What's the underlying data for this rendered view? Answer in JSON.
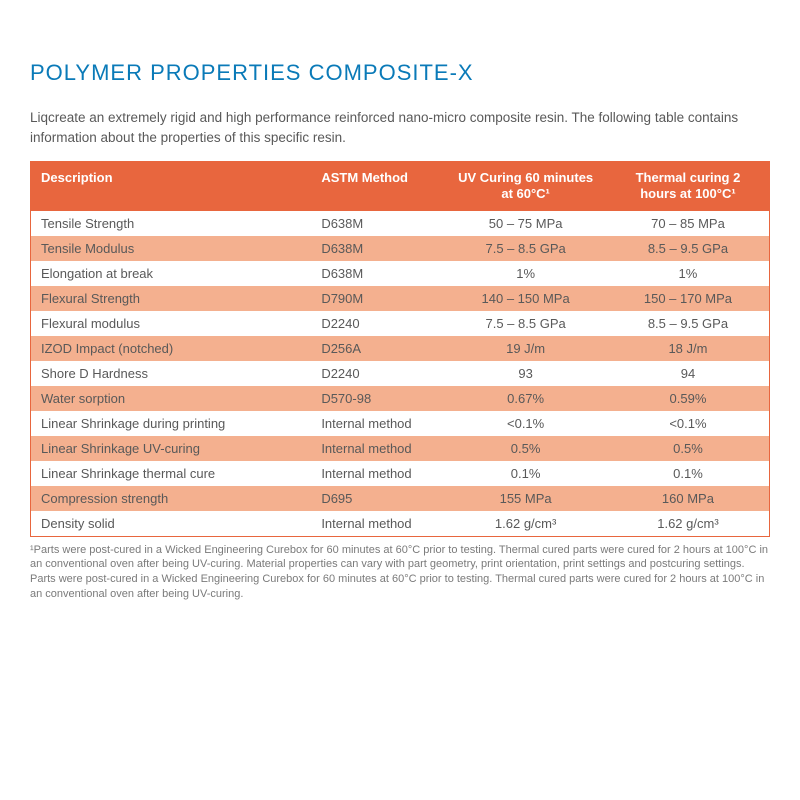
{
  "title": "POLYMER PROPERTIES COMPOSITE-X",
  "intro": "Liqcreate an extremely rigid and high performance reinforced nano-micro composite resin. The following table contains information about the properties of this specific resin.",
  "columns": {
    "c0": "Description",
    "c1": "ASTM Method",
    "c2": "UV Curing 60 minutes at 60°C¹",
    "c3": "Thermal curing 2 hours at 100°C¹"
  },
  "rows": [
    {
      "c0": "Tensile Strength",
      "c1": "D638M",
      "c2": "50 – 75 MPa",
      "c3": "70 – 85 MPa"
    },
    {
      "c0": "Tensile Modulus",
      "c1": "D638M",
      "c2": "7.5 – 8.5  GPa",
      "c3": "8.5 – 9.5  GPa"
    },
    {
      "c0": "Elongation at break",
      "c1": "D638M",
      "c2": "1%",
      "c3": "1%"
    },
    {
      "c0": "Flexural Strength",
      "c1": "D790M",
      "c2": "140 – 150 MPa",
      "c3": "150 – 170 MPa"
    },
    {
      "c0": "Flexural modulus",
      "c1": "D2240",
      "c2": "7.5 – 8.5  GPa",
      "c3": "8.5 – 9.5  GPa"
    },
    {
      "c0": "IZOD Impact (notched)",
      "c1": "D256A",
      "c2": "19 J/m",
      "c3": "18 J/m"
    },
    {
      "c0": "Shore D Hardness",
      "c1": "D2240",
      "c2": "93",
      "c3": "94"
    },
    {
      "c0": "Water sorption",
      "c1": "D570-98",
      "c2": "0.67%",
      "c3": "0.59%"
    },
    {
      "c0": "Linear Shrinkage during printing",
      "c1": "Internal method",
      "c2": "<0.1%",
      "c3": "<0.1%"
    },
    {
      "c0": "Linear Shrinkage UV-curing",
      "c1": "Internal method",
      "c2": "0.5%",
      "c3": "0.5%"
    },
    {
      "c0": "Linear Shrinkage thermal cure",
      "c1": "Internal method",
      "c2": "0.1%",
      "c3": "0.1%"
    },
    {
      "c0": "Compression strength",
      "c1": "D695",
      "c2": "155 MPa",
      "c3": "160 MPa"
    },
    {
      "c0": "Density solid",
      "c1": "Internal method",
      "c2": "1.62 g/cm³",
      "c3": "1.62 g/cm³"
    }
  ],
  "footnote": "¹Parts were post-cured in a Wicked Engineering Curebox for 60 minutes at 60°C prior to testing. Thermal cured parts were cured for 2 hours at 100°C in an conventional oven after being UV-curing. Material properties can vary with part geometry, print orientation, print settings and postcuring settings. Parts were post-cured in a Wicked Engineering Curebox for 60 minutes at 60°C prior to testing. Thermal cured parts were cured for 2 hours at 100°C in an conventional oven after being UV-curing.",
  "style": {
    "header_bg": "#e8663e",
    "row_alt_bg": "#f4b08f",
    "title_color": "#0a7ab8",
    "text_color": "#595959",
    "column_widths_pct": [
      38,
      18,
      22,
      22
    ]
  }
}
